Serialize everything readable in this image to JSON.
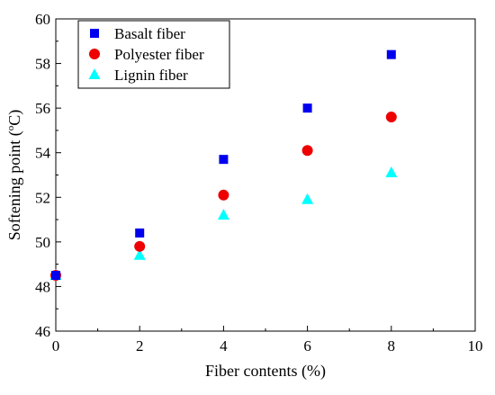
{
  "chart_data": {
    "type": "scatter",
    "title": "",
    "xlabel": "Fiber contents (%)",
    "ylabel_prefix": "Softening point (",
    "ylabel_super": "o",
    "ylabel_suffix": "C)",
    "xlim": [
      0,
      10
    ],
    "ylim": [
      46,
      60
    ],
    "xticks": [
      "0",
      "2",
      "4",
      "6",
      "8",
      "10"
    ],
    "yticks": [
      "46",
      "48",
      "50",
      "52",
      "54",
      "56",
      "58",
      "60"
    ],
    "grid": false,
    "legend_position": "top-left",
    "series": [
      {
        "name": "Basalt fiber",
        "marker": "square",
        "color": "#0000ee",
        "x": [
          0,
          2,
          4,
          6,
          8
        ],
        "y": [
          48.5,
          50.4,
          53.7,
          56.0,
          58.4
        ]
      },
      {
        "name": "Polyester fiber",
        "marker": "circle",
        "color": "#ee0000",
        "x": [
          0,
          2,
          4,
          6,
          8
        ],
        "y": [
          48.5,
          49.8,
          52.1,
          54.1,
          55.6
        ]
      },
      {
        "name": "Lignin fiber",
        "marker": "triangle",
        "color": "#00ffff",
        "x": [
          0,
          2,
          4,
          6,
          8
        ],
        "y": [
          48.5,
          49.4,
          51.2,
          51.9,
          53.1
        ]
      }
    ]
  }
}
